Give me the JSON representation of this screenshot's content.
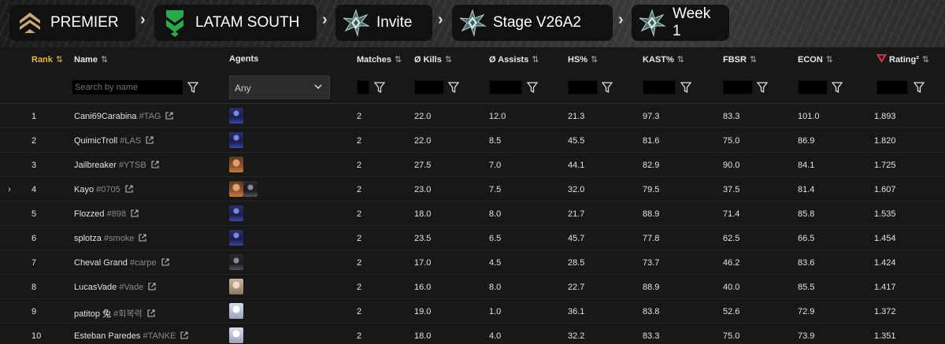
{
  "breadcrumb": {
    "items": [
      {
        "label": "PREMIER",
        "icon": "premier-logo-icon"
      },
      {
        "label": "LATAM SOUTH",
        "icon": "region-chevron-icon"
      },
      {
        "label": "Invite",
        "icon": "division-star-icon"
      },
      {
        "label": "Stage V26A2",
        "icon": "division-star-icon"
      },
      {
        "label": "Week 1",
        "icon": "division-star-icon"
      }
    ],
    "separator": "›"
  },
  "table": {
    "columns": {
      "rank": "Rank",
      "name": "Name",
      "agents": "Agents",
      "matches": "Matches",
      "kills": "Ø Kills",
      "assists": "Ø Assists",
      "hs": "HS%",
      "kast": "KAST%",
      "fbsr": "FBSR",
      "econ": "ECON",
      "rating": "Rating²"
    },
    "sort_icon": "⇅",
    "active_sort_icon": "⇅",
    "search_placeholder": "Search by name",
    "agent_filter_value": "Any",
    "rows": [
      {
        "rank": "1",
        "name": "Cani69Carabina",
        "tag": "#TAG",
        "agents": [
          "agent-dark-blue"
        ],
        "matches": "2",
        "kills": "22.0",
        "assists": "12.0",
        "hs": "21.3",
        "kast": "97.3",
        "fbsr": "83.3",
        "econ": "101.0",
        "rating": "1.893"
      },
      {
        "rank": "2",
        "name": "QuimicTroll",
        "tag": "#LAS",
        "agents": [
          "agent-dark-blue"
        ],
        "matches": "2",
        "kills": "22.0",
        "assists": "8.5",
        "hs": "45.5",
        "kast": "81.6",
        "fbsr": "75.0",
        "econ": "86.9",
        "rating": "1.820"
      },
      {
        "rank": "3",
        "name": "Jailbreaker",
        "tag": "#YTSB",
        "agents": [
          "agent-orange"
        ],
        "matches": "2",
        "kills": "27.5",
        "assists": "7.0",
        "hs": "44.1",
        "kast": "82.9",
        "fbsr": "90.0",
        "econ": "84.1",
        "rating": "1.725"
      },
      {
        "rank": "4",
        "name": "Kayo",
        "tag": "#0705",
        "agents": [
          "agent-orange",
          "agent-dark-grey"
        ],
        "matches": "2",
        "kills": "23.0",
        "assists": "7.5",
        "hs": "32.0",
        "kast": "79.5",
        "fbsr": "37.5",
        "econ": "81.4",
        "rating": "1.607"
      },
      {
        "rank": "5",
        "name": "Flozzed",
        "tag": "#898",
        "agents": [
          "agent-dark-blue"
        ],
        "matches": "2",
        "kills": "18.0",
        "assists": "8.0",
        "hs": "21.7",
        "kast": "88.9",
        "fbsr": "71.4",
        "econ": "85.8",
        "rating": "1.535"
      },
      {
        "rank": "6",
        "name": "splotza",
        "tag": "#smoke",
        "agents": [
          "agent-dark-blue"
        ],
        "matches": "2",
        "kills": "23.5",
        "assists": "6.5",
        "hs": "45.7",
        "kast": "77.8",
        "fbsr": "62.5",
        "econ": "66.5",
        "rating": "1.454"
      },
      {
        "rank": "7",
        "name": "Cheval Grand",
        "tag": "#carpe",
        "agents": [
          "agent-dark-grey"
        ],
        "matches": "2",
        "kills": "17.0",
        "assists": "4.5",
        "hs": "28.5",
        "kast": "73.7",
        "fbsr": "46.2",
        "econ": "83.6",
        "rating": "1.424"
      },
      {
        "rank": "8",
        "name": "LucasVade",
        "tag": "#Vade",
        "agents": [
          "agent-pale"
        ],
        "matches": "2",
        "kills": "16.0",
        "assists": "8.0",
        "hs": "22.7",
        "kast": "88.9",
        "fbsr": "40.0",
        "econ": "85.5",
        "rating": "1.417"
      },
      {
        "rank": "9",
        "name": "patitop 兔",
        "tag": "#회복력",
        "agents": [
          "agent-white"
        ],
        "matches": "2",
        "kills": "19.0",
        "assists": "1.0",
        "hs": "36.1",
        "kast": "83.8",
        "fbsr": "52.6",
        "econ": "72.9",
        "rating": "1.372"
      },
      {
        "rank": "10",
        "name": "Esteban Paredes",
        "tag": "#TANKE",
        "agents": [
          "agent-white"
        ],
        "matches": "2",
        "kills": "18.0",
        "assists": "4.0",
        "hs": "32.2",
        "kast": "83.3",
        "fbsr": "75.0",
        "econ": "73.9",
        "rating": "1.351"
      }
    ]
  },
  "colors": {
    "accent_sort": "#e8b84a",
    "rating_icon": "#d9404f"
  }
}
